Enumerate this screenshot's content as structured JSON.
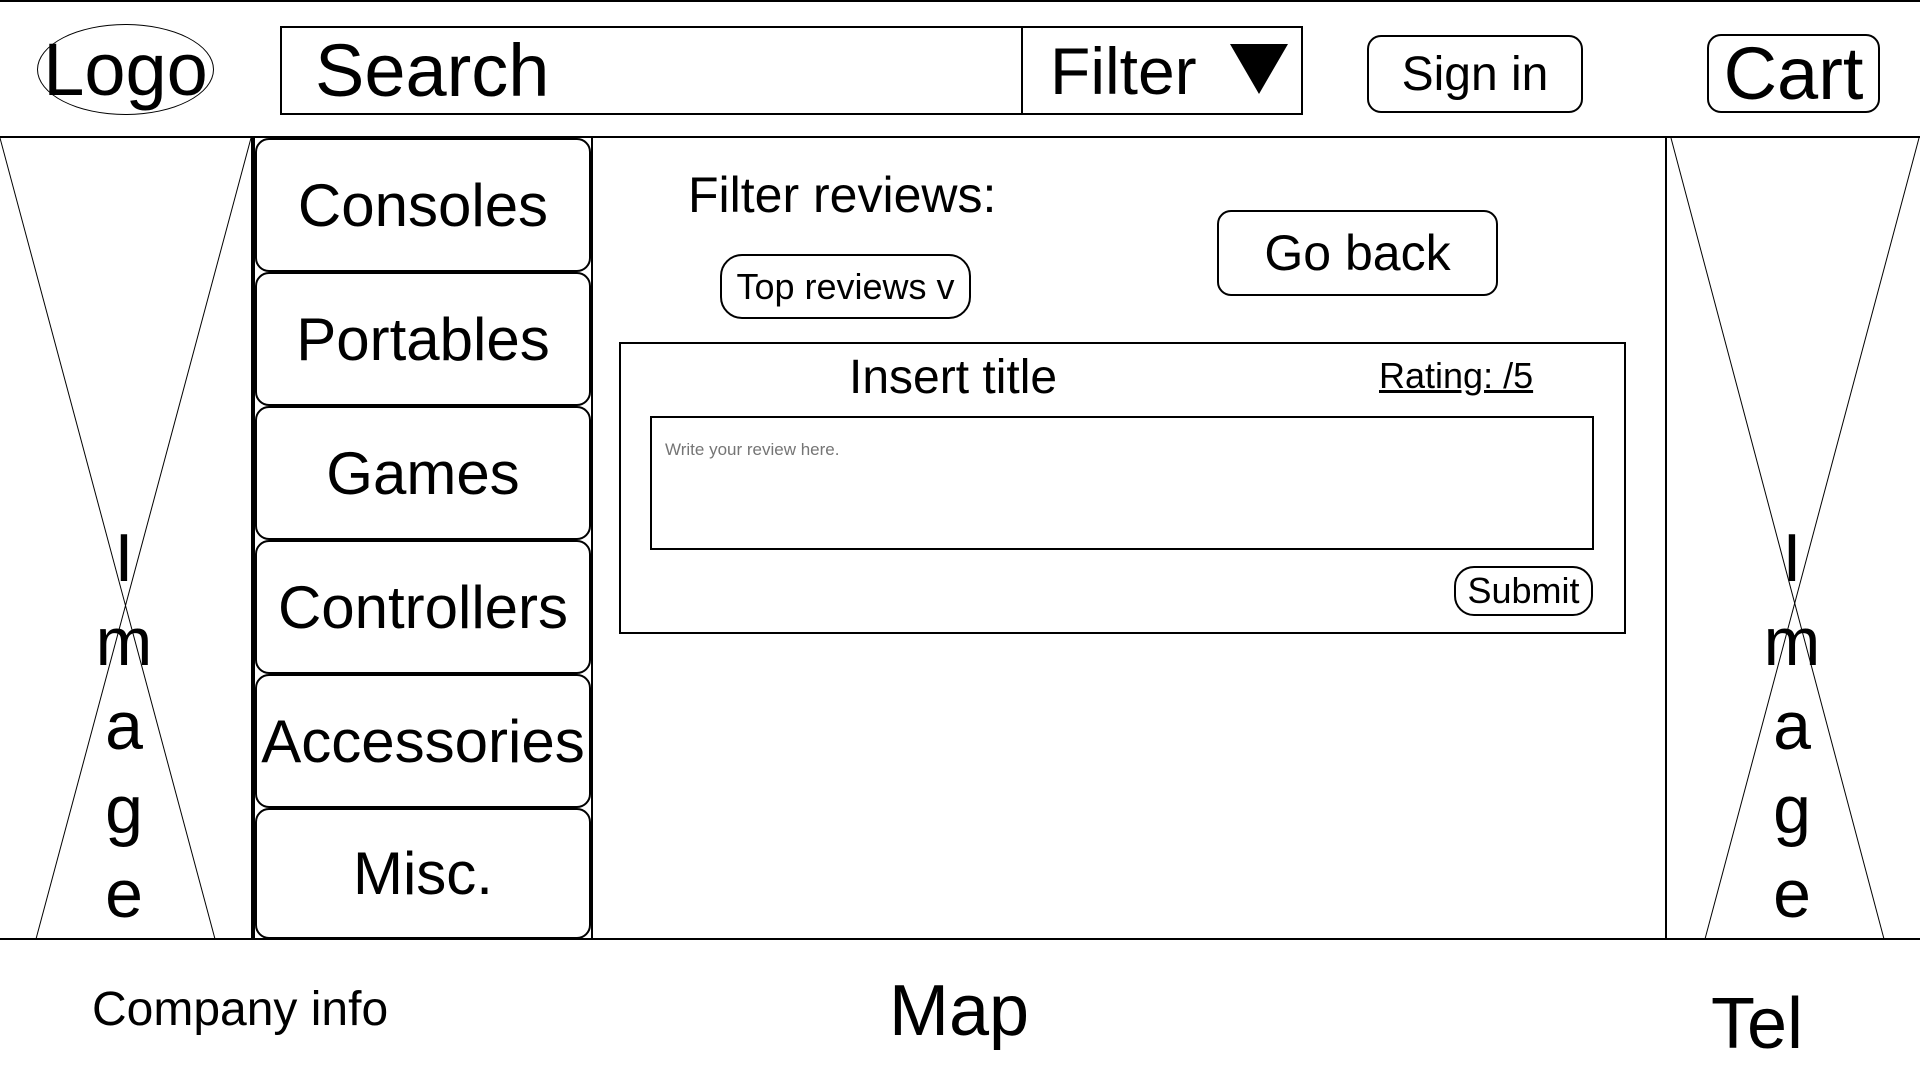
{
  "header": {
    "logo": "Logo",
    "search_value": "Search",
    "filter_label": "Filter",
    "sign_in": "Sign in",
    "cart": "Cart"
  },
  "side_image": {
    "letters": [
      "I",
      "m",
      "a",
      "g",
      "e"
    ]
  },
  "nav": {
    "items": [
      "Consoles",
      "Portables",
      "Games",
      "Controllers",
      "Accessories",
      "Misc."
    ]
  },
  "main": {
    "filter_title": "Filter reviews:",
    "reviews_select": "Top reviews v",
    "go_back": "Go back",
    "review": {
      "title": "Insert title",
      "rating": "Rating:  /5",
      "placeholder": "Write your review here.",
      "submit": "Submit"
    }
  },
  "footer": {
    "company_info": "Company info",
    "map": "Map",
    "tel": "Tel"
  }
}
